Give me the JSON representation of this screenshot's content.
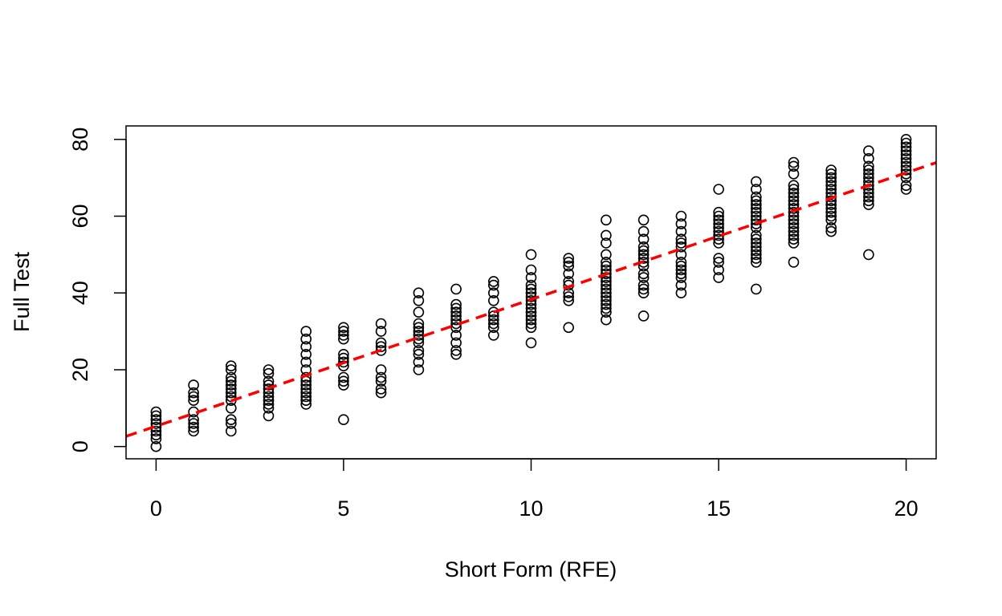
{
  "chart_data": {
    "type": "scatter",
    "title": "",
    "xlabel": "Short Form (RFE)",
    "ylabel": "Full Test",
    "xlim": [
      -0.8,
      20.8
    ],
    "ylim": [
      -3.2,
      83.5
    ],
    "x_ticks": [
      0,
      5,
      10,
      15,
      20
    ],
    "x_tick_labels": [
      "0",
      "5",
      "10",
      "15",
      "20"
    ],
    "y_ticks": [
      0,
      20,
      40,
      60,
      80
    ],
    "y_tick_labels": [
      "0",
      "20",
      "40",
      "60",
      "80"
    ],
    "grid": false,
    "legend": "none",
    "point_color": "#000000",
    "points": [
      {
        "x": 0,
        "y": [
          0,
          2,
          3,
          4,
          5,
          6,
          7,
          8,
          9
        ]
      },
      {
        "x": 1,
        "y": [
          4,
          5,
          6,
          7,
          9,
          12,
          13,
          14,
          16
        ]
      },
      {
        "x": 2,
        "y": [
          4,
          6,
          7,
          10,
          12,
          13,
          14,
          15,
          16,
          17,
          18,
          20,
          21
        ]
      },
      {
        "x": 3,
        "y": [
          8,
          10,
          11,
          12,
          13,
          14,
          15,
          16,
          17,
          19,
          20
        ]
      },
      {
        "x": 4,
        "y": [
          11,
          12,
          13,
          14,
          15,
          16,
          17,
          18,
          20,
          22,
          24,
          26,
          28,
          30
        ]
      },
      {
        "x": 5,
        "y": [
          7,
          16,
          17,
          18,
          21,
          22,
          23,
          24,
          28,
          29,
          30,
          31
        ]
      },
      {
        "x": 6,
        "y": [
          14,
          15,
          17,
          18,
          20,
          25,
          26,
          27,
          30,
          32
        ]
      },
      {
        "x": 7,
        "y": [
          20,
          22,
          24,
          25,
          27,
          28,
          29,
          30,
          31,
          32,
          35,
          38,
          40
        ]
      },
      {
        "x": 8,
        "y": [
          24,
          25,
          27,
          29,
          31,
          32,
          33,
          34,
          35,
          36,
          37,
          41
        ]
      },
      {
        "x": 9,
        "y": [
          29,
          31,
          32,
          33,
          34,
          35,
          38,
          40,
          42,
          43
        ]
      },
      {
        "x": 10,
        "y": [
          27,
          31,
          32,
          33,
          34,
          35,
          36,
          37,
          38,
          39,
          40,
          41,
          42,
          44,
          46,
          50
        ]
      },
      {
        "x": 11,
        "y": [
          31,
          38,
          39,
          40,
          42,
          43,
          45,
          47,
          48,
          49
        ]
      },
      {
        "x": 12,
        "y": [
          33,
          35,
          36,
          37,
          38,
          39,
          40,
          41,
          42,
          43,
          44,
          45,
          46,
          47,
          48,
          50,
          53,
          55,
          59
        ]
      },
      {
        "x": 13,
        "y": [
          34,
          40,
          41,
          42,
          44,
          45,
          47,
          48,
          49,
          50,
          51,
          52,
          54,
          56,
          59
        ]
      },
      {
        "x": 14,
        "y": [
          40,
          42,
          44,
          45,
          46,
          47,
          48,
          50,
          52,
          53,
          54,
          56,
          58,
          60
        ]
      },
      {
        "x": 15,
        "y": [
          44,
          46,
          48,
          49,
          53,
          54,
          55,
          56,
          57,
          58,
          59,
          60,
          61,
          67
        ]
      },
      {
        "x": 16,
        "y": [
          41,
          48,
          49,
          50,
          51,
          52,
          53,
          54,
          55,
          57,
          58,
          59,
          60,
          61,
          62,
          63,
          64,
          65,
          67,
          69
        ]
      },
      {
        "x": 17,
        "y": [
          48,
          53,
          54,
          55,
          56,
          57,
          58,
          59,
          60,
          61,
          62,
          63,
          64,
          65,
          66,
          67,
          68,
          71,
          73,
          74
        ]
      },
      {
        "x": 18,
        "y": [
          56,
          57,
          59,
          60,
          61,
          62,
          63,
          64,
          65,
          66,
          67,
          68,
          69,
          70,
          71,
          72
        ]
      },
      {
        "x": 19,
        "y": [
          50,
          63,
          64,
          65,
          66,
          67,
          68,
          69,
          70,
          71,
          72,
          73,
          75,
          77
        ]
      },
      {
        "x": 20,
        "y": [
          67,
          68,
          70,
          71,
          72,
          73,
          74,
          75,
          76,
          77,
          78,
          79,
          80
        ]
      }
    ],
    "fit_line": {
      "style": "dashed",
      "color": "#ff0000",
      "intercept": 5.3,
      "slope": 3.3
    }
  }
}
